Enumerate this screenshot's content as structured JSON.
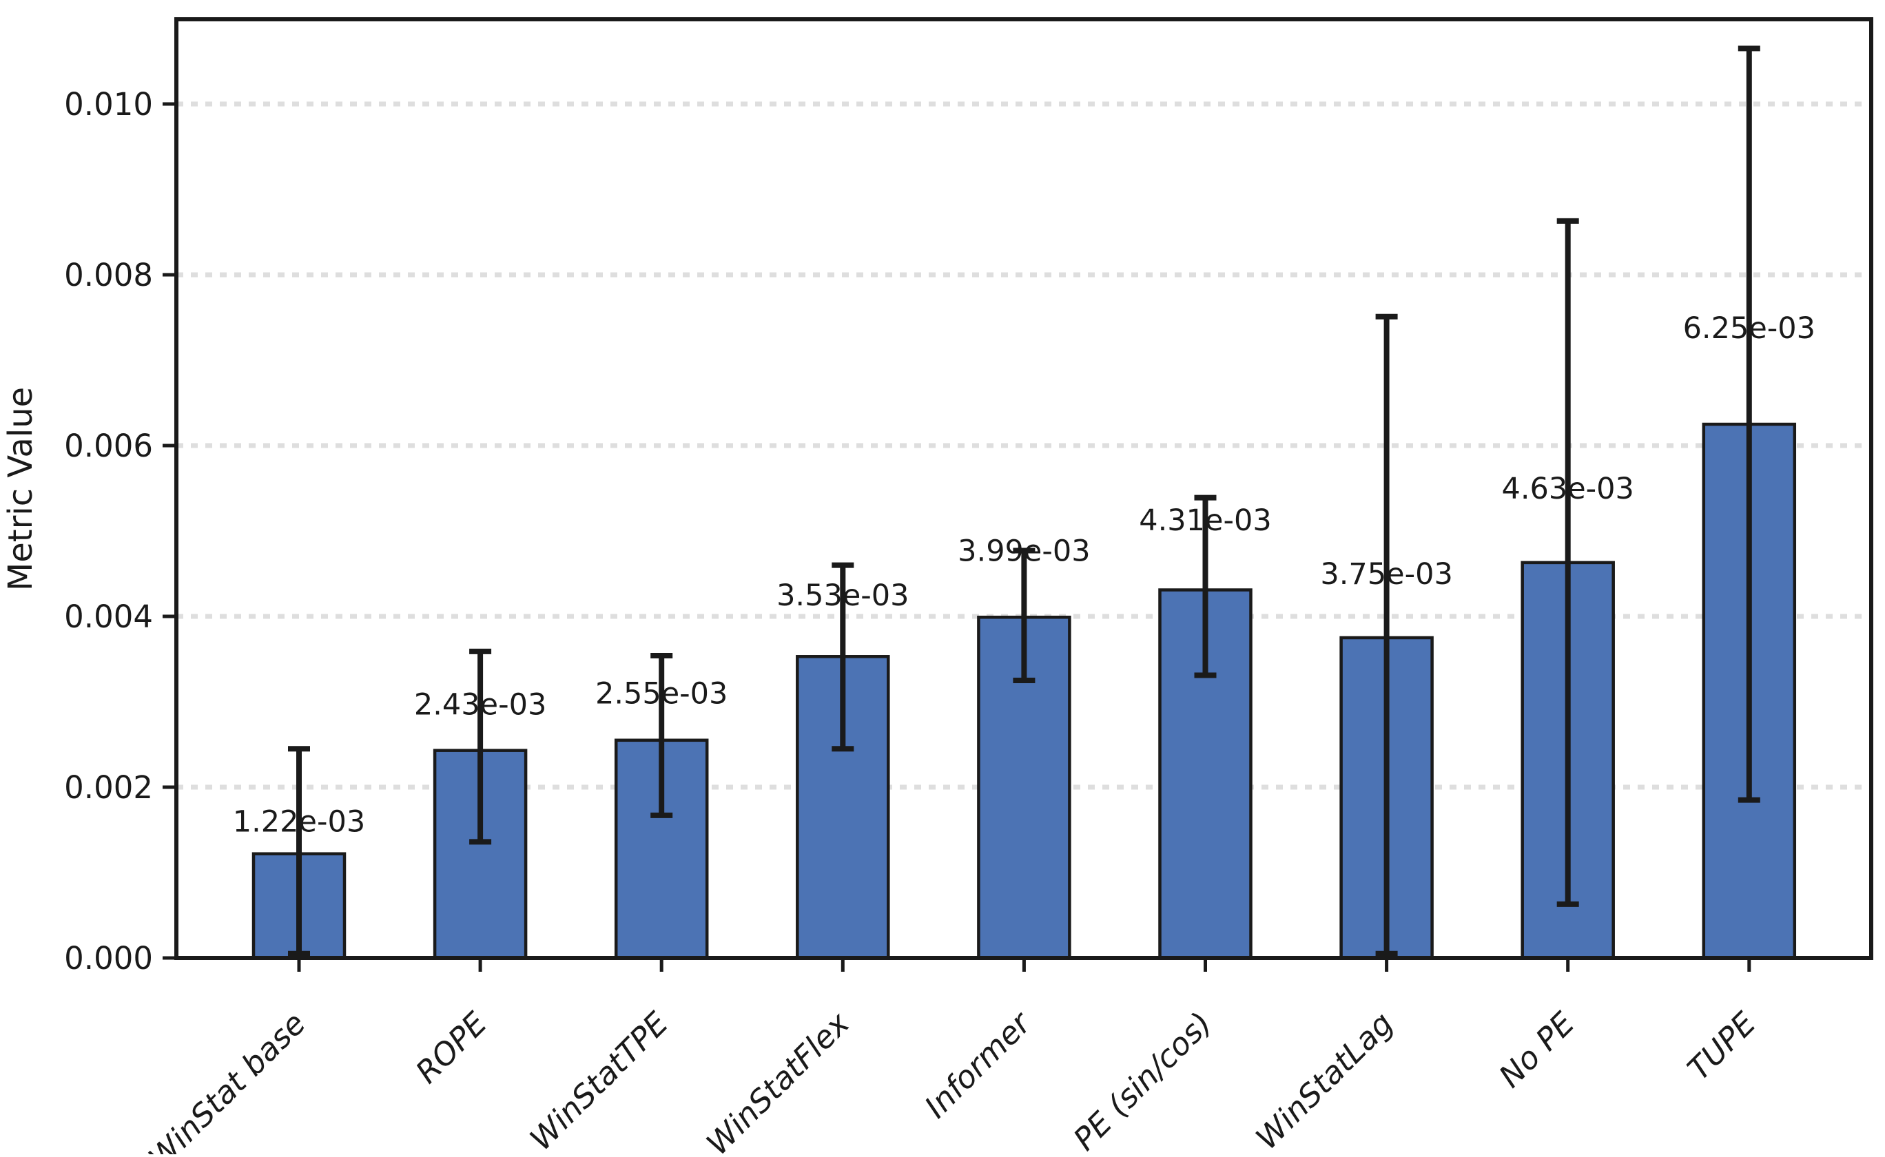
{
  "chart_data": {
    "type": "bar",
    "title": "",
    "xlabel": "",
    "ylabel": "Metric Value",
    "ylim": [
      0,
      0.011
    ],
    "yticks": [
      0,
      0.002,
      0.004,
      0.006,
      0.008,
      0.01
    ],
    "ytick_labels": [
      "0.000",
      "0.002",
      "0.004",
      "0.006",
      "0.008",
      "0.010"
    ],
    "grid": {
      "axis": "y",
      "style": "dotted",
      "on": true
    },
    "legend": "none",
    "categories": [
      "WinStat base",
      "ROPE",
      "WinStatTPE",
      "WinStatFlex",
      "Informer",
      "PE (sin/cos)",
      "WinStatLag",
      "No PE",
      "TUPE"
    ],
    "values": [
      0.00122,
      0.00243,
      0.00255,
      0.00353,
      0.00399,
      0.00431,
      0.00375,
      0.00463,
      0.00625
    ],
    "errors_low": [
      0.00117,
      0.00107,
      0.00088,
      0.00108,
      0.00074,
      0.001,
      0.0037,
      0.004,
      0.0044
    ],
    "errors_high": [
      0.00123,
      0.00116,
      0.00099,
      0.00107,
      0.00078,
      0.00108,
      0.00376,
      0.004,
      0.0044
    ],
    "bar_value_labels": [
      "1.22e-03",
      "2.43e-03",
      "2.55e-03",
      "3.53e-03",
      "3.99e-03",
      "4.31e-03",
      "3.75e-03",
      "4.63e-03",
      "6.25e-03"
    ],
    "bar_label_y_values": [
      0.0016,
      0.00297,
      0.0031,
      0.00425,
      0.00477,
      0.00513,
      0.0045,
      0.0055,
      0.00738
    ],
    "x_tick_label_style": "italic rotated 45deg",
    "colors": {
      "bar_fill": "#4c73b4",
      "bar_edge": "#1a1a1a",
      "error_bar": "#1a1a1a",
      "grid_line": "#dedede",
      "axis_line": "#1a1a1a",
      "text": "#1a1a1a",
      "background": "#ffffff"
    }
  }
}
